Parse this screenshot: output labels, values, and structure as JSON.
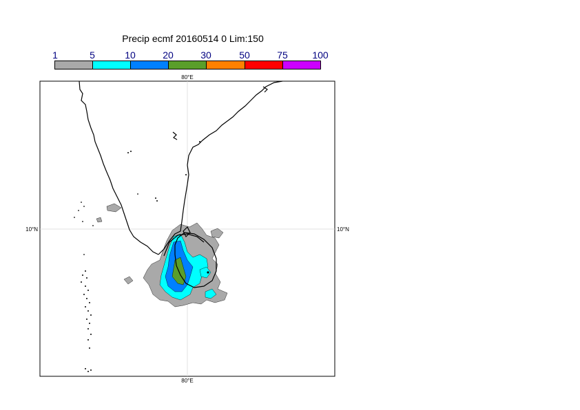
{
  "title": "Precip ecmf 20160514 0 Lim:150",
  "legend": {
    "ticks": [
      "1",
      "5",
      "10",
      "20",
      "30",
      "50",
      "75",
      "100"
    ],
    "colors": [
      "#a9a9a9",
      "#00ffff",
      "#0080ff",
      "#5a9e2a",
      "#ff8000",
      "#ff0000",
      "#cc00ff"
    ]
  },
  "axes": {
    "top_lon": "80°E",
    "bottom_lon": "80°E",
    "left_lat": "10°N",
    "right_lat": "10°N"
  }
}
